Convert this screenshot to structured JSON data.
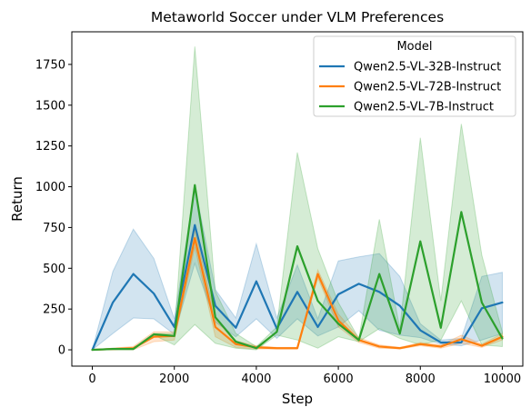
{
  "chart_data": {
    "type": "line",
    "title": "Metaworld Soccer under VLM Preferences",
    "xlabel": "Step",
    "ylabel": "Return",
    "xlim": [
      -500,
      10500
    ],
    "ylim": [
      -100,
      1950
    ],
    "xticks": [
      0,
      2000,
      4000,
      6000,
      8000,
      10000
    ],
    "yticks": [
      0,
      250,
      500,
      750,
      1000,
      1250,
      1500,
      1750
    ],
    "grid": false,
    "legend": {
      "title": "Model",
      "placement": "top-right"
    },
    "x": [
      0,
      500,
      1000,
      1500,
      2000,
      2500,
      3000,
      3500,
      4000,
      4500,
      5000,
      5500,
      6000,
      6500,
      7000,
      7500,
      8000,
      8500,
      9000,
      9500,
      10000
    ],
    "series": [
      {
        "name": "Qwen2.5-VL-32B-Instruct",
        "color": "#1f77b4",
        "values": [
          0,
          290,
          465,
          345,
          140,
          765,
          270,
          135,
          420,
          130,
          355,
          140,
          340,
          405,
          355,
          270,
          120,
          45,
          45,
          255,
          290
        ],
        "upper": [
          0,
          480,
          740,
          560,
          190,
          1000,
          370,
          195,
          650,
          195,
          520,
          190,
          545,
          570,
          590,
          450,
          160,
          60,
          70,
          450,
          475
        ],
        "lower": [
          0,
          100,
          195,
          190,
          95,
          530,
          170,
          80,
          190,
          70,
          190,
          85,
          140,
          240,
          120,
          90,
          75,
          35,
          25,
          60,
          100
        ]
      },
      {
        "name": "Qwen2.5-VL-72B-Instruct",
        "color": "#ff7f0e",
        "values": [
          0,
          5,
          10,
          80,
          85,
          685,
          140,
          35,
          15,
          10,
          10,
          465,
          180,
          60,
          20,
          10,
          35,
          20,
          65,
          25,
          80
        ],
        "upper": [
          0,
          10,
          20,
          110,
          110,
          740,
          200,
          55,
          25,
          15,
          15,
          490,
          220,
          75,
          30,
          15,
          45,
          30,
          90,
          35,
          100
        ],
        "lower": [
          0,
          0,
          0,
          50,
          60,
          630,
          80,
          15,
          5,
          5,
          5,
          440,
          140,
          45,
          10,
          5,
          25,
          10,
          40,
          15,
          60
        ]
      },
      {
        "name": "Qwen2.5-VL-7B-Instruct",
        "color": "#2ca02c",
        "values": [
          0,
          5,
          5,
          95,
          85,
          1010,
          200,
          50,
          10,
          110,
          635,
          300,
          160,
          60,
          465,
          100,
          665,
          135,
          845,
          290,
          70
        ],
        "upper": [
          0,
          10,
          10,
          100,
          100,
          1860,
          360,
          100,
          20,
          140,
          1210,
          620,
          290,
          70,
          800,
          130,
          1300,
          300,
          1385,
          580,
          110
        ],
        "lower": [
          0,
          0,
          0,
          90,
          30,
          155,
          40,
          10,
          0,
          90,
          60,
          10,
          80,
          50,
          130,
          70,
          30,
          60,
          300,
          30,
          20
        ]
      }
    ]
  }
}
